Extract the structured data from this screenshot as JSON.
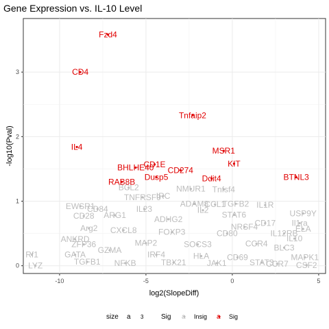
{
  "chart_data": {
    "type": "scatter",
    "title": "Gene Expression vs. IL-10 Level",
    "xlabel": "log2(SlopeDiff)",
    "ylabel": "-log10(Pval)",
    "xlim": [
      -12.1,
      5.4
    ],
    "ylim": [
      -0.12,
      3.83
    ],
    "xticks": [
      -10,
      -5,
      0,
      5
    ],
    "yticks": [
      0,
      1,
      2,
      3
    ],
    "grid": true,
    "legend": {
      "placement": "bottom",
      "size_title": "size",
      "size_key": "a",
      "size_value": "3",
      "color_title": "Sig",
      "color_key": "a",
      "entries": [
        {
          "label": "Insig",
          "color": "#bdbdbd"
        },
        {
          "label": "Sig",
          "color": "#e00000"
        }
      ]
    },
    "colors": {
      "insig": "#bdbdbd",
      "sig": "#e00000"
    },
    "significant": [
      {
        "label": "Fzd4",
        "x": -7.2,
        "y": 3.58
      },
      {
        "label": "CD4",
        "x": -8.8,
        "y": 3.0
      },
      {
        "label": "Tnfaip2",
        "x": -2.3,
        "y": 2.33
      },
      {
        "label": "IL4",
        "x": -9.0,
        "y": 1.84
      },
      {
        "label": "MSR1",
        "x": -0.5,
        "y": 1.78
      },
      {
        "label": "KIT",
        "x": 0.1,
        "y": 1.58
      },
      {
        "label": "CD1E",
        "x": -4.5,
        "y": 1.57
      },
      {
        "label": "BHLHE40",
        "x": -5.6,
        "y": 1.52
      },
      {
        "label": "CD274",
        "x": -3.0,
        "y": 1.48
      },
      {
        "label": "Dusp5",
        "x": -4.4,
        "y": 1.37
      },
      {
        "label": "Ddit4",
        "x": -1.2,
        "y": 1.35
      },
      {
        "label": "BTNL3",
        "x": 3.7,
        "y": 1.37
      },
      {
        "label": "RAB8B",
        "x": -6.4,
        "y": 1.3
      }
    ],
    "insignificant": [
      {
        "label": "BCL2",
        "x": -6.0,
        "y": 1.21
      },
      {
        "label": "NMUR1",
        "x": -2.4,
        "y": 1.19
      },
      {
        "label": "Tnfsf4",
        "x": -0.5,
        "y": 1.18
      },
      {
        "label": "TNFRSF9",
        "x": -5.2,
        "y": 1.06
      },
      {
        "label": "IRC",
        "x": -4.0,
        "y": 1.08
      },
      {
        "label": "ADAM8",
        "x": -2.2,
        "y": 0.96
      },
      {
        "label": "CCL1",
        "x": -1.0,
        "y": 0.95
      },
      {
        "label": "TGFB2",
        "x": 0.2,
        "y": 0.96
      },
      {
        "label": "IL1R",
        "x": 1.9,
        "y": 0.94
      },
      {
        "label": "EWSR1",
        "x": -8.8,
        "y": 0.92
      },
      {
        "label": "CD84",
        "x": -7.8,
        "y": 0.88
      },
      {
        "label": "IL23",
        "x": -5.1,
        "y": 0.88
      },
      {
        "label": "IL2",
        "x": -1.7,
        "y": 0.86
      },
      {
        "label": "STAT6",
        "x": 0.1,
        "y": 0.79
      },
      {
        "label": "USP9Y",
        "x": 4.1,
        "y": 0.81
      },
      {
        "label": "CD28",
        "x": -8.6,
        "y": 0.77
      },
      {
        "label": "ARG1",
        "x": -6.8,
        "y": 0.78
      },
      {
        "label": "ADHG2",
        "x": -3.7,
        "y": 0.72
      },
      {
        "label": "Il1ra",
        "x": 3.9,
        "y": 0.66
      },
      {
        "label": "CD17",
        "x": 1.9,
        "y": 0.66
      },
      {
        "label": "Arg2",
        "x": -8.3,
        "y": 0.58
      },
      {
        "label": "NRSF4",
        "x": 0.7,
        "y": 0.6
      },
      {
        "label": "ELA",
        "x": 4.1,
        "y": 0.57
      },
      {
        "label": "IL12RB",
        "x": 3.0,
        "y": 0.5
      },
      {
        "label": "CXCL8",
        "x": -6.3,
        "y": 0.55
      },
      {
        "label": "FOXP3",
        "x": -3.5,
        "y": 0.52
      },
      {
        "label": "CD80",
        "x": -0.3,
        "y": 0.5
      },
      {
        "label": "ANKRD",
        "x": -9.1,
        "y": 0.41
      },
      {
        "label": "ZFP36",
        "x": -8.6,
        "y": 0.33
      },
      {
        "label": "IL10",
        "x": 3.6,
        "y": 0.42
      },
      {
        "label": "MAP2",
        "x": -5.0,
        "y": 0.35
      },
      {
        "label": "SOCS3",
        "x": -2.0,
        "y": 0.33
      },
      {
        "label": "CCR4",
        "x": 1.4,
        "y": 0.34
      },
      {
        "label": "BLC3",
        "x": 3.0,
        "y": 0.28
      },
      {
        "label": "GZMA",
        "x": -7.1,
        "y": 0.24
      },
      {
        "label": "Rf1",
        "x": -11.6,
        "y": 0.17
      },
      {
        "label": "GATA",
        "x": -9.1,
        "y": 0.17
      },
      {
        "label": "IRF4",
        "x": -4.4,
        "y": 0.17
      },
      {
        "label": "HLA",
        "x": -1.8,
        "y": 0.15
      },
      {
        "label": "CD69",
        "x": 0.3,
        "y": 0.13
      },
      {
        "label": "MAPK1",
        "x": 4.2,
        "y": 0.13
      },
      {
        "label": "TGFB1",
        "x": -8.4,
        "y": 0.06
      },
      {
        "label": "NFKB",
        "x": -6.2,
        "y": 0.04
      },
      {
        "label": "TBX21",
        "x": -3.4,
        "y": 0.05
      },
      {
        "label": "JAK1",
        "x": -0.9,
        "y": 0.04
      },
      {
        "label": "STAT3",
        "x": 1.7,
        "y": 0.05
      },
      {
        "label": "CCR7",
        "x": 2.6,
        "y": 0.03
      },
      {
        "label": "CSF2",
        "x": 4.3,
        "y": 0.01
      },
      {
        "label": "LYZ",
        "x": -11.4,
        "y": 0.0
      }
    ]
  }
}
